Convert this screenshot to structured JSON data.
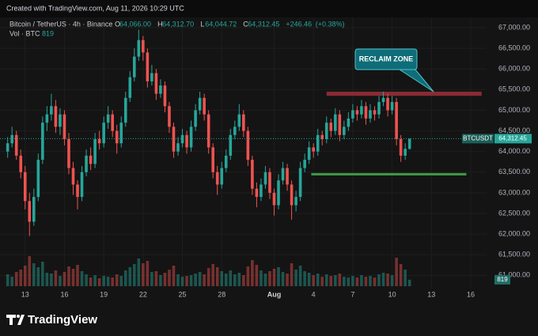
{
  "screen": {
    "watermark": "Created with TradingView.com, Aug 11, 2026 10:29 UTC",
    "brand": "TradingView"
  },
  "chart_data": {
    "type": "candlestick",
    "title": "Bitcoin / TetherUS · 4h · Binance",
    "legend": {
      "fields": [
        {
          "key": "O",
          "value": 64066,
          "label": "64,066.00"
        },
        {
          "key": "H",
          "value": 64312.7,
          "label": "64,312.70"
        },
        {
          "key": "L",
          "value": 64044.72,
          "label": "64,044.72"
        },
        {
          "key": "C",
          "value": 64312.45,
          "label": "64,312.45"
        }
      ],
      "change": {
        "value": 246.46,
        "label": "+246.46"
      },
      "change_pct": {
        "value": 0.38,
        "label": "(+0.38%)"
      }
    },
    "volume_title": "Vol · BTC",
    "volume_last": 819,
    "up_color": "#26a69a",
    "down_color": "#ef5350",
    "xlim": [
      "2026-07-11T02:00Z",
      "2026-08-17T05:00Z"
    ],
    "xticks": [
      {
        "value": "2026-07-13T00:00Z",
        "label": "13"
      },
      {
        "value": "2026-07-16T00:00Z",
        "label": "16"
      },
      {
        "value": "2026-07-19T00:00Z",
        "label": "19"
      },
      {
        "value": "2026-07-22T00:00Z",
        "label": "22"
      },
      {
        "value": "2026-07-25T00:00Z",
        "label": "25"
      },
      {
        "value": "2026-07-28T00:00Z",
        "label": "28"
      },
      {
        "value": "2026-08-01T00:00Z",
        "label": "Aug"
      },
      {
        "value": "2026-08-04T00:00Z",
        "label": "4"
      },
      {
        "value": "2026-08-07T00:00Z",
        "label": "7"
      },
      {
        "value": "2026-08-10T00:00Z",
        "label": "10"
      },
      {
        "value": "2026-08-13T00:00Z",
        "label": "13"
      },
      {
        "value": "2026-08-16T00:00Z",
        "label": "16"
      }
    ],
    "ylim": [
      60680,
      67250
    ],
    "yticks": [
      {
        "value": 61000,
        "label": "61,000.00"
      },
      {
        "value": 61500,
        "label": "61,500.00"
      },
      {
        "value": 62000,
        "label": "62,000.00"
      },
      {
        "value": 62500,
        "label": "62,500.00"
      },
      {
        "value": 63000,
        "label": "63,000.00"
      },
      {
        "value": 63500,
        "label": "63,500.00"
      },
      {
        "value": 64000,
        "label": "64,000.00"
      },
      {
        "value": 64500,
        "label": "64,500.00"
      },
      {
        "value": 65000,
        "label": "65,000.00"
      },
      {
        "value": 65500,
        "label": "65,500.00"
      },
      {
        "value": 66000,
        "label": "66,000.00"
      },
      {
        "value": 66500,
        "label": "66,500.00"
      },
      {
        "value": 67000,
        "label": "67,000.00"
      }
    ],
    "volume_ylim": [
      0,
      6000
    ],
    "last_price": {
      "value": 64312.45,
      "label": "64,312.45"
    },
    "zones": [
      {
        "name": "RECLAIM ZONE",
        "low": 65350,
        "high": 65450,
        "from": "2026-08-05T00:00Z",
        "to": "2026-08-16T20:00Z",
        "color": "#8a2b33"
      }
    ],
    "levels": [
      {
        "value": 63450,
        "from": "2026-08-03T20:00Z",
        "to": "2026-08-15T16:00Z",
        "color": "#3f9b45"
      }
    ],
    "series": [
      {
        "name": "BTCUSDT",
        "x": [
          "2026-07-11T16:00Z",
          "2026-07-12T00:00Z",
          "2026-07-12T08:00Z",
          "2026-07-12T16:00Z",
          "2026-07-13T00:00Z",
          "2026-07-13T08:00Z",
          "2026-07-13T16:00Z",
          "2026-07-14T00:00Z",
          "2026-07-14T08:00Z",
          "2026-07-14T16:00Z",
          "2026-07-15T00:00Z",
          "2026-07-15T08:00Z",
          "2026-07-15T16:00Z",
          "2026-07-16T00:00Z",
          "2026-07-16T08:00Z",
          "2026-07-16T16:00Z",
          "2026-07-17T00:00Z",
          "2026-07-17T08:00Z",
          "2026-07-17T16:00Z",
          "2026-07-18T00:00Z",
          "2026-07-18T08:00Z",
          "2026-07-18T16:00Z",
          "2026-07-19T00:00Z",
          "2026-07-19T08:00Z",
          "2026-07-19T16:00Z",
          "2026-07-20T00:00Z",
          "2026-07-20T08:00Z",
          "2026-07-20T16:00Z",
          "2026-07-21T00:00Z",
          "2026-07-21T08:00Z",
          "2026-07-21T16:00Z",
          "2026-07-22T00:00Z",
          "2026-07-22T08:00Z",
          "2026-07-22T16:00Z",
          "2026-07-23T00:00Z",
          "2026-07-23T08:00Z",
          "2026-07-23T16:00Z",
          "2026-07-24T00:00Z",
          "2026-07-24T08:00Z",
          "2026-07-24T16:00Z",
          "2026-07-25T00:00Z",
          "2026-07-25T08:00Z",
          "2026-07-25T16:00Z",
          "2026-07-26T00:00Z",
          "2026-07-26T08:00Z",
          "2026-07-26T16:00Z",
          "2026-07-27T00:00Z",
          "2026-07-27T08:00Z",
          "2026-07-27T16:00Z",
          "2026-07-28T00:00Z",
          "2026-07-28T08:00Z",
          "2026-07-28T16:00Z",
          "2026-07-29T00:00Z",
          "2026-07-29T08:00Z",
          "2026-07-29T16:00Z",
          "2026-07-30T00:00Z",
          "2026-07-30T08:00Z",
          "2026-07-30T16:00Z",
          "2026-07-31T00:00Z",
          "2026-07-31T08:00Z",
          "2026-07-31T16:00Z",
          "2026-08-01T00:00Z",
          "2026-08-01T08:00Z",
          "2026-08-01T16:00Z",
          "2026-08-02T00:00Z",
          "2026-08-02T08:00Z",
          "2026-08-02T16:00Z",
          "2026-08-03T00:00Z",
          "2026-08-03T08:00Z",
          "2026-08-03T16:00Z",
          "2026-08-04T00:00Z",
          "2026-08-04T08:00Z",
          "2026-08-04T16:00Z",
          "2026-08-05T00:00Z",
          "2026-08-05T08:00Z",
          "2026-08-05T16:00Z",
          "2026-08-06T00:00Z",
          "2026-08-06T08:00Z",
          "2026-08-06T16:00Z",
          "2026-08-07T00:00Z",
          "2026-08-07T08:00Z",
          "2026-08-07T16:00Z",
          "2026-08-08T00:00Z",
          "2026-08-08T08:00Z",
          "2026-08-08T16:00Z",
          "2026-08-09T00:00Z",
          "2026-08-09T08:00Z",
          "2026-08-09T16:00Z",
          "2026-08-10T00:00Z",
          "2026-08-10T08:00Z",
          "2026-08-10T16:00Z",
          "2026-08-11T00:00Z",
          "2026-08-11T08:00Z"
        ],
        "open": [
          64000,
          64200,
          64400,
          63900,
          63500,
          62800,
          62300,
          62900,
          63800,
          64700,
          64900,
          65100,
          64600,
          64900,
          64300,
          63600,
          63200,
          62900,
          63500,
          63900,
          63700,
          64300,
          64200,
          64700,
          64900,
          64500,
          64200,
          64700,
          65300,
          65800,
          66300,
          66700,
          66400,
          65700,
          65900,
          65400,
          65600,
          65100,
          64600,
          64000,
          64200,
          64400,
          64100,
          64600,
          65000,
          65300,
          64900,
          64100,
          63500,
          63200,
          63600,
          63900,
          64400,
          64600,
          64900,
          64500,
          63800,
          63100,
          62900,
          63200,
          63500,
          63000,
          62700,
          63300,
          63600,
          63200,
          62700,
          62900,
          63600,
          63800,
          64100,
          64000,
          64400,
          64300,
          64700,
          64500,
          64900,
          64400,
          64600,
          64800,
          65000,
          64900,
          65100,
          64800,
          65000,
          64900,
          65200,
          65300,
          65000,
          65200,
          64300,
          63900,
          64066
        ],
        "high": [
          64350,
          64600,
          64500,
          64050,
          63650,
          63000,
          63100,
          63950,
          64850,
          65100,
          65400,
          65250,
          65050,
          65000,
          64450,
          63750,
          63300,
          63650,
          64050,
          64100,
          64450,
          64500,
          64850,
          65100,
          65000,
          64650,
          64850,
          65450,
          65950,
          66500,
          66950,
          66800,
          66500,
          66100,
          66000,
          65750,
          65700,
          65200,
          64700,
          64350,
          64550,
          64500,
          64750,
          65150,
          65450,
          65400,
          65000,
          64200,
          63650,
          63750,
          64050,
          64550,
          64750,
          65150,
          65000,
          64600,
          63900,
          63250,
          63350,
          63650,
          63600,
          63100,
          63450,
          63750,
          63700,
          63300,
          63050,
          63750,
          63950,
          64250,
          64200,
          64550,
          64500,
          64850,
          64800,
          65050,
          65000,
          64750,
          64950,
          65150,
          65100,
          65250,
          65200,
          65150,
          65100,
          65350,
          65450,
          65400,
          65350,
          65300,
          64400,
          64200,
          64312.7
        ],
        "low": [
          63850,
          64100,
          63800,
          63350,
          62600,
          61950,
          62200,
          62800,
          63700,
          64500,
          64750,
          64450,
          64400,
          64150,
          63450,
          62950,
          62600,
          62800,
          63400,
          63550,
          63600,
          64050,
          64100,
          64550,
          64350,
          63950,
          64100,
          64600,
          65200,
          65700,
          66200,
          66200,
          65550,
          65600,
          65250,
          65300,
          64950,
          64450,
          63850,
          63900,
          64100,
          63950,
          64000,
          64500,
          64900,
          64750,
          63950,
          63350,
          62950,
          63100,
          63500,
          63800,
          64300,
          64500,
          64350,
          63650,
          62950,
          62650,
          62800,
          63100,
          62850,
          62450,
          62600,
          63200,
          63050,
          62350,
          62550,
          62800,
          63500,
          63700,
          63850,
          63900,
          64150,
          64200,
          64350,
          64400,
          64250,
          64300,
          64500,
          64700,
          64750,
          64800,
          64650,
          64700,
          64750,
          64800,
          65100,
          64850,
          64900,
          64150,
          63750,
          63800,
          64044.72
        ],
        "close": [
          64200,
          64400,
          63900,
          63500,
          62800,
          62300,
          62900,
          63800,
          64700,
          64900,
          65100,
          64600,
          64900,
          64300,
          63600,
          63200,
          62900,
          63500,
          63900,
          63700,
          64300,
          64200,
          64700,
          64900,
          64500,
          64200,
          64700,
          65300,
          65800,
          66300,
          66700,
          66400,
          65700,
          65900,
          65400,
          65600,
          65100,
          64600,
          64000,
          64200,
          64400,
          64100,
          64600,
          65000,
          65300,
          64900,
          64100,
          63500,
          63200,
          63600,
          63900,
          64400,
          64600,
          64900,
          64500,
          63800,
          63100,
          62900,
          63200,
          63500,
          63000,
          62700,
          63300,
          63600,
          63200,
          62700,
          62900,
          63600,
          63800,
          64100,
          64000,
          64400,
          64300,
          64700,
          64500,
          64900,
          64400,
          64600,
          64800,
          65000,
          64900,
          65100,
          64800,
          65000,
          64900,
          65200,
          65300,
          65000,
          65200,
          64300,
          63900,
          64066,
          64312.45
        ],
        "volume": [
          1500,
          1200,
          1800,
          2100,
          2600,
          3800,
          2900,
          2400,
          3100,
          1700,
          1600,
          2000,
          1300,
          1800,
          2500,
          2200,
          2700,
          1900,
          1500,
          1100,
          1400,
          1000,
          1300,
          1200,
          1100,
          1500,
          1300,
          2000,
          2400,
          2800,
          3500,
          2900,
          3200,
          1800,
          1900,
          1400,
          1700,
          2100,
          2600,
          1500,
          1200,
          1300,
          1400,
          1600,
          1800,
          1500,
          2300,
          2800,
          2400,
          1900,
          1600,
          2000,
          1500,
          1700,
          1400,
          2500,
          3300,
          2700,
          2000,
          1600,
          1900,
          2200,
          2400,
          1800,
          1600,
          2900,
          2100,
          2600,
          1900,
          1700,
          1400,
          1600,
          1200,
          1500,
          1300,
          1400,
          1600,
          1200,
          1100,
          1300,
          1100,
          1400,
          1200,
          1300,
          1100,
          1500,
          1700,
          1600,
          1400,
          3600,
          2800,
          2100,
          819
        ]
      }
    ]
  }
}
